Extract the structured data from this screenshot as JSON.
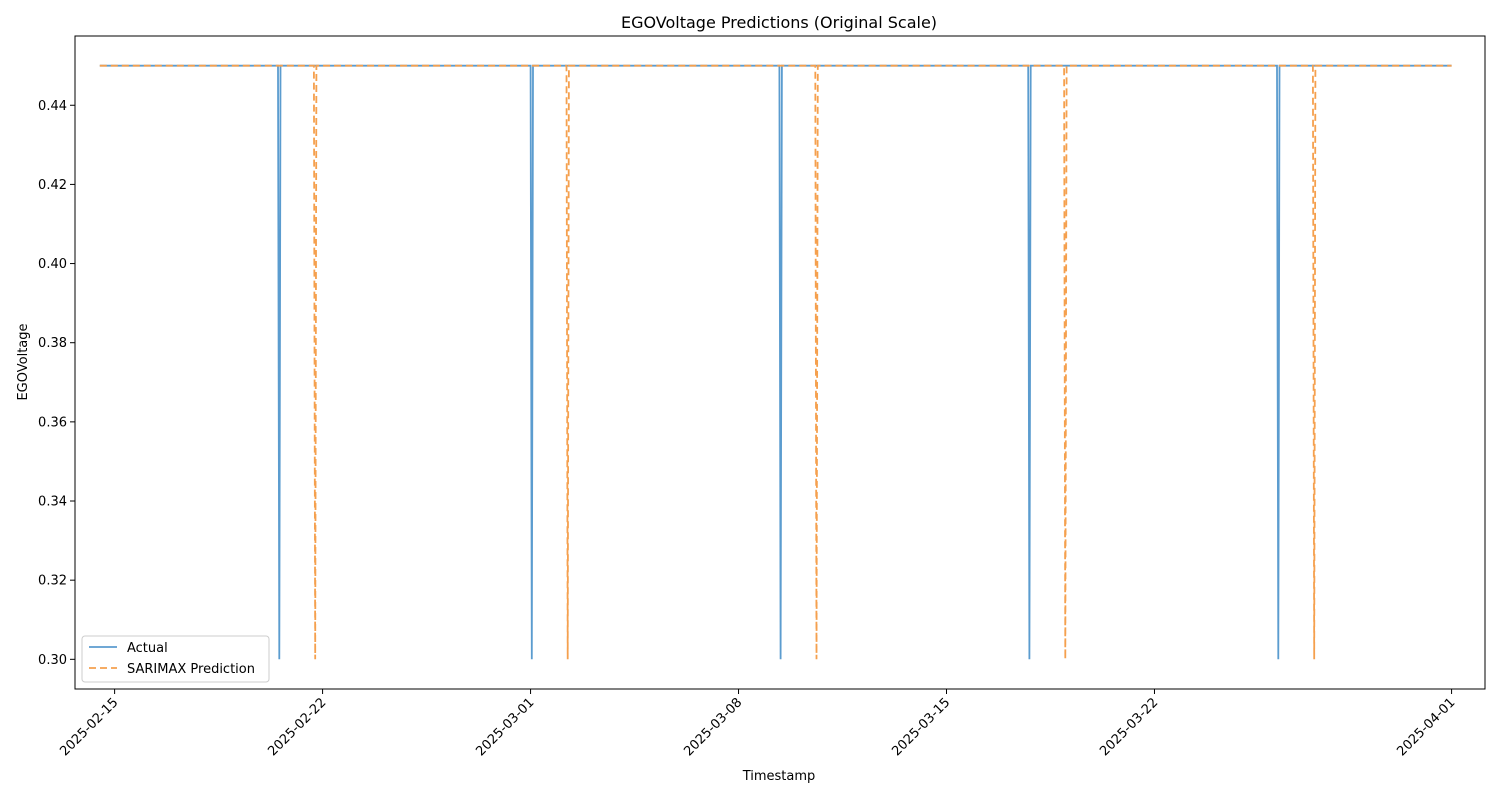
{
  "chart_data": {
    "type": "line",
    "title": "EGOVoltage Predictions (Original Scale)",
    "xlabel": "Timestamp",
    "ylabel": "EGOVoltage",
    "x_ticks": [
      "2025-02-15",
      "2025-02-22",
      "2025-03-01",
      "2025-03-08",
      "2025-03-15",
      "2025-03-22",
      "2025-04-01"
    ],
    "y_ticks": [
      "0.30",
      "0.32",
      "0.34",
      "0.36",
      "0.38",
      "0.40",
      "0.42",
      "0.44"
    ],
    "xlim": [
      "2025-02-13T16:00",
      "2025-04-02T03:00"
    ],
    "ylim": [
      0.2925,
      0.4575
    ],
    "grid": false,
    "legend_position": "lower-left",
    "series": [
      {
        "name": "Actual",
        "color": "#5b9ccf",
        "dash": "solid",
        "points": [
          {
            "x": "2025-02-14T12:00",
            "y": 0.45
          },
          {
            "x": "2025-02-20T12:00",
            "y": 0.45
          },
          {
            "x": "2025-02-20T13:00",
            "y": 0.3
          },
          {
            "x": "2025-02-20T14:00",
            "y": 0.45
          },
          {
            "x": "2025-03-01T00:00",
            "y": 0.45
          },
          {
            "x": "2025-03-01T01:00",
            "y": 0.3
          },
          {
            "x": "2025-03-01T02:00",
            "y": 0.45
          },
          {
            "x": "2025-03-09T09:00",
            "y": 0.45
          },
          {
            "x": "2025-03-09T10:00",
            "y": 0.3
          },
          {
            "x": "2025-03-09T11:00",
            "y": 0.45
          },
          {
            "x": "2025-03-17T18:00",
            "y": 0.45
          },
          {
            "x": "2025-03-17T19:00",
            "y": 0.3
          },
          {
            "x": "2025-03-17T20:00",
            "y": 0.45
          },
          {
            "x": "2025-03-26T03:00",
            "y": 0.45
          },
          {
            "x": "2025-03-26T04:00",
            "y": 0.3
          },
          {
            "x": "2025-03-26T05:00",
            "y": 0.45
          },
          {
            "x": "2025-04-01T00:00",
            "y": 0.45
          }
        ]
      },
      {
        "name": "SARIMAX Prediction",
        "color": "#f5a04e",
        "dash": "dashed",
        "points": [
          {
            "x": "2025-02-14T12:00",
            "y": 0.45
          },
          {
            "x": "2025-02-21T17:00",
            "y": 0.45
          },
          {
            "x": "2025-02-21T18:00",
            "y": 0.3
          },
          {
            "x": "2025-02-21T19:00",
            "y": 0.45
          },
          {
            "x": "2025-03-02T05:00",
            "y": 0.45
          },
          {
            "x": "2025-03-02T06:00",
            "y": 0.3
          },
          {
            "x": "2025-03-02T07:00",
            "y": 0.45
          },
          {
            "x": "2025-03-10T14:00",
            "y": 0.45
          },
          {
            "x": "2025-03-10T15:00",
            "y": 0.3
          },
          {
            "x": "2025-03-10T16:00",
            "y": 0.45
          },
          {
            "x": "2025-03-18T23:00",
            "y": 0.45
          },
          {
            "x": "2025-03-19T00:00",
            "y": 0.3
          },
          {
            "x": "2025-03-19T01:00",
            "y": 0.45
          },
          {
            "x": "2025-03-27T08:00",
            "y": 0.45
          },
          {
            "x": "2025-03-27T09:00",
            "y": 0.3
          },
          {
            "x": "2025-03-27T10:00",
            "y": 0.45
          },
          {
            "x": "2025-04-01T00:00",
            "y": 0.45
          }
        ]
      }
    ]
  }
}
